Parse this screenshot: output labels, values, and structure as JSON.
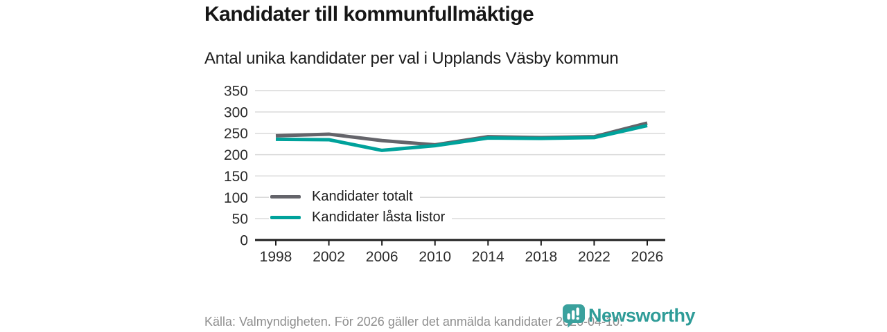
{
  "header": {
    "title": "Kandidater till kommunfullmäktige",
    "subtitle": "Antal unika kandidater per val i Upplands Väsby kommun"
  },
  "chart_data": {
    "type": "line",
    "title": "Kandidater till kommunfullmäktige",
    "subtitle": "Antal unika kandidater per val i Upplands Väsby kommun",
    "categories": [
      "1998",
      "2002",
      "2006",
      "2010",
      "2014",
      "2018",
      "2022",
      "2026"
    ],
    "series": [
      {
        "name": "Kandidater totalt",
        "color": "#64646a",
        "values": [
          244,
          248,
          233,
          223,
          242,
          240,
          242,
          274
        ]
      },
      {
        "name": "Kandidater låsta listor",
        "color": "#00a29b",
        "values": [
          236,
          235,
          210,
          221,
          239,
          238,
          240,
          268
        ]
      }
    ],
    "xlabel": "",
    "ylabel": "",
    "ylim": [
      0,
      350
    ],
    "ytick_step": 50,
    "yticks": [
      "0",
      "50",
      "100",
      "150",
      "200",
      "250",
      "300",
      "350"
    ],
    "grid": true,
    "legend_position": "inside-bottom-left"
  },
  "footer": {
    "source": "Källa: Valmyndigheten. För 2026 gäller det anmälda kandidater 2026-04-10."
  },
  "logo": {
    "brand": "Newsworthy",
    "icon": "newsworthy-speech-bubble-bar-chart-icon",
    "icon_color": "#3aa19d",
    "word_color": "#2f9c98"
  },
  "colors": {
    "grid": "#d9d9d9",
    "axis": "#1d1d1d",
    "tick_label": "#2b2b2b",
    "text": "#161616",
    "footer_text": "#8e8e8e"
  }
}
